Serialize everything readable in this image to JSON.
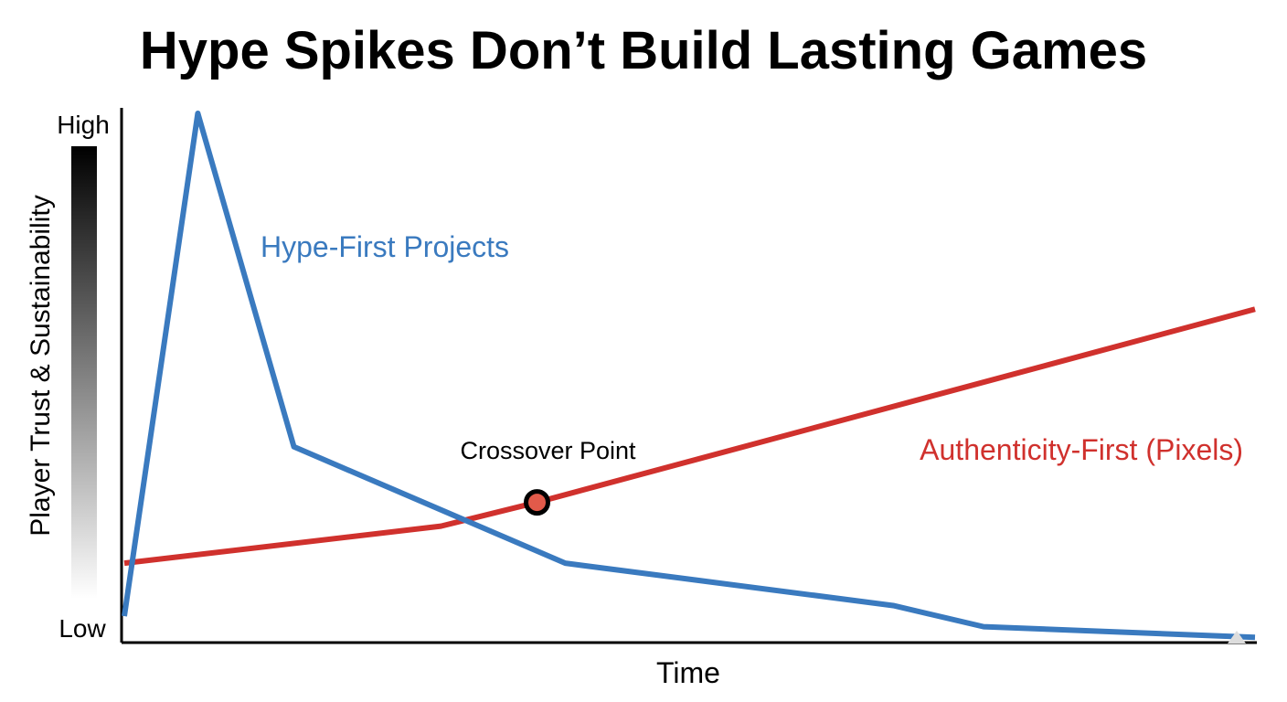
{
  "chart_data": {
    "type": "line",
    "title": "Hype Spikes Don’t Build Lasting Games",
    "xlabel": "Time",
    "ylabel": "Player Trust & Sustainability",
    "ylim": [
      0,
      100
    ],
    "xlim": [
      0,
      100
    ],
    "y_tick_labels": [
      "Low",
      "High"
    ],
    "grid": false,
    "series": [
      {
        "name": "Hype-First Projects",
        "color": "#3a7abf",
        "x": [
          0,
          6.5,
          15,
          39,
          68,
          76,
          100
        ],
        "y": [
          5,
          100,
          37,
          15,
          7,
          3,
          1
        ]
      },
      {
        "name": "Authenticity-First (Pixels)",
        "color": "#d0312d",
        "x": [
          0,
          28,
          36.5,
          100
        ],
        "y": [
          15,
          22,
          26.5,
          63
        ]
      }
    ],
    "annotations": [
      {
        "text": "Crossover Point",
        "x": 36.5,
        "y": 26.5
      }
    ]
  }
}
